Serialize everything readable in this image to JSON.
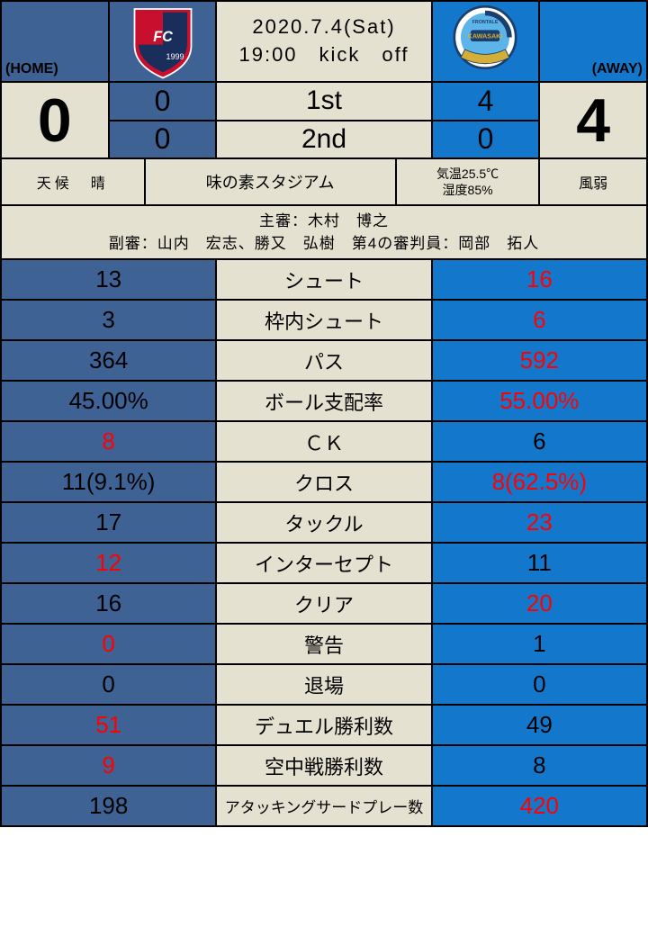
{
  "colors": {
    "home_bg": "#3e6294",
    "away_bg": "#1378cc",
    "neutral_bg": "#e5e1d1",
    "highlight": "#ff0000",
    "text": "#000000",
    "black": "#000000"
  },
  "header": {
    "home_label": "(HOME)",
    "away_label": "(AWAY)",
    "date_line1": "2020.7.4(Sat)",
    "date_line2": "19:00　kick　off"
  },
  "score": {
    "home_total": "0",
    "away_total": "4",
    "home_1st": "0",
    "home_2nd": "0",
    "away_1st": "4",
    "away_2nd": "0",
    "label_1st": "1st",
    "label_2nd": "2nd"
  },
  "conditions": {
    "weather": "天候　晴",
    "venue": "味の素スタジアム",
    "temp_line1": "気温25.5℃",
    "temp_line2": "湿度85%",
    "wind": "風弱"
  },
  "referees": {
    "line1": "主審：木村　博之",
    "line2": "副審：山内　宏志、勝又　弘樹　第4の審判員：岡部　拓人"
  },
  "stats": [
    {
      "home": "13",
      "label": "シュート",
      "away": "16",
      "home_hl": false,
      "away_hl": true,
      "small": false
    },
    {
      "home": "3",
      "label": "枠内シュート",
      "away": "6",
      "home_hl": false,
      "away_hl": true,
      "small": false
    },
    {
      "home": "364",
      "label": "パス",
      "away": "592",
      "home_hl": false,
      "away_hl": true,
      "small": false
    },
    {
      "home": "45.00%",
      "label": "ボール支配率",
      "away": "55.00%",
      "home_hl": false,
      "away_hl": true,
      "small": false
    },
    {
      "home": "8",
      "label": "ＣＫ",
      "away": "6",
      "home_hl": true,
      "away_hl": false,
      "small": false
    },
    {
      "home": "11(9.1%)",
      "label": "クロス",
      "away": "8(62.5%)",
      "home_hl": false,
      "away_hl": true,
      "small": false
    },
    {
      "home": "17",
      "label": "タックル",
      "away": "23",
      "home_hl": false,
      "away_hl": true,
      "small": false
    },
    {
      "home": "12",
      "label": "インターセプト",
      "away": "11",
      "home_hl": true,
      "away_hl": false,
      "small": false
    },
    {
      "home": "16",
      "label": "クリア",
      "away": "20",
      "home_hl": false,
      "away_hl": true,
      "small": false
    },
    {
      "home": "0",
      "label": "警告",
      "away": "1",
      "home_hl": true,
      "away_hl": false,
      "small": false
    },
    {
      "home": "0",
      "label": "退場",
      "away": "0",
      "home_hl": false,
      "away_hl": false,
      "small": false
    },
    {
      "home": "51",
      "label": "デュエル勝利数",
      "away": "49",
      "home_hl": true,
      "away_hl": false,
      "small": false
    },
    {
      "home": "9",
      "label": "空中戦勝利数",
      "away": "8",
      "home_hl": true,
      "away_hl": false,
      "small": false
    },
    {
      "home": "198",
      "label": "アタッキングサードプレー数",
      "away": "420",
      "home_hl": false,
      "away_hl": true,
      "small": true
    }
  ]
}
